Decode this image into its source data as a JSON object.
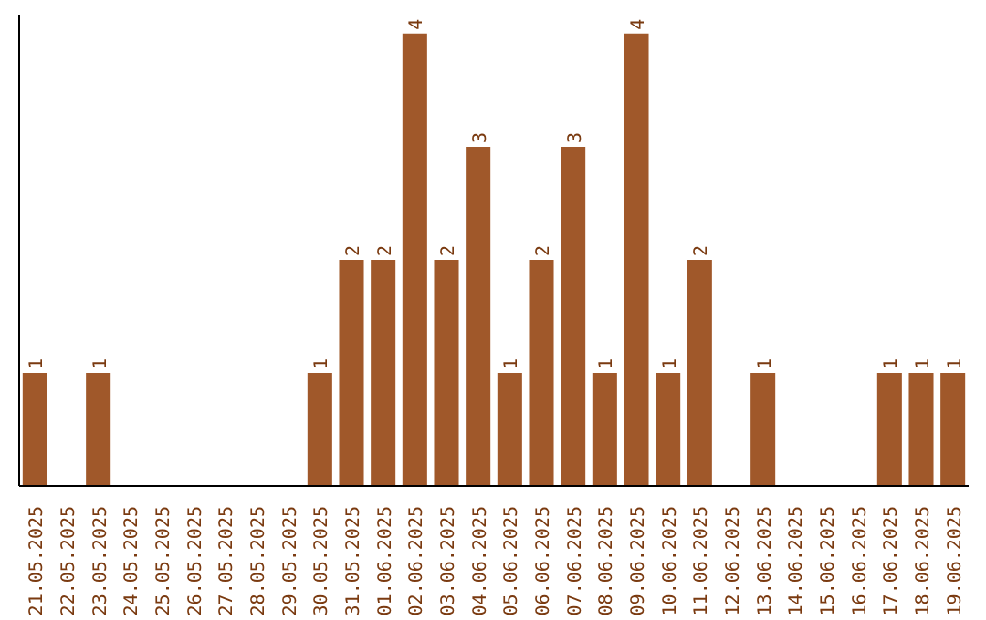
{
  "chart_data": {
    "type": "bar",
    "categories": [
      "21.05.2025",
      "22.05.2025",
      "23.05.2025",
      "24.05.2025",
      "25.05.2025",
      "26.05.2025",
      "27.05.2025",
      "28.05.2025",
      "29.05.2025",
      "30.05.2025",
      "31.05.2025",
      "01.06.2025",
      "02.06.2025",
      "03.06.2025",
      "04.06.2025",
      "05.06.2025",
      "06.06.2025",
      "07.06.2025",
      "08.06.2025",
      "09.06.2025",
      "10.06.2025",
      "11.06.2025",
      "12.06.2025",
      "13.06.2025",
      "14.06.2025",
      "15.06.2025",
      "16.06.2025",
      "17.06.2025",
      "18.06.2025",
      "19.06.2025"
    ],
    "values": [
      1,
      0,
      1,
      0,
      0,
      0,
      0,
      0,
      0,
      1,
      2,
      2,
      4,
      2,
      3,
      1,
      2,
      3,
      1,
      4,
      1,
      2,
      0,
      1,
      0,
      0,
      0,
      1,
      1,
      1
    ],
    "value_labels": [
      "1",
      null,
      "1",
      null,
      null,
      null,
      null,
      null,
      null,
      "1",
      "2",
      "2",
      "4",
      "2",
      "3",
      "1",
      "2",
      "3",
      "1",
      "4",
      "1",
      "2",
      null,
      "1",
      null,
      null,
      null,
      "1",
      "1",
      "1"
    ],
    "color": "#a0582a",
    "tick_labels": "x",
    "grid": false
  }
}
